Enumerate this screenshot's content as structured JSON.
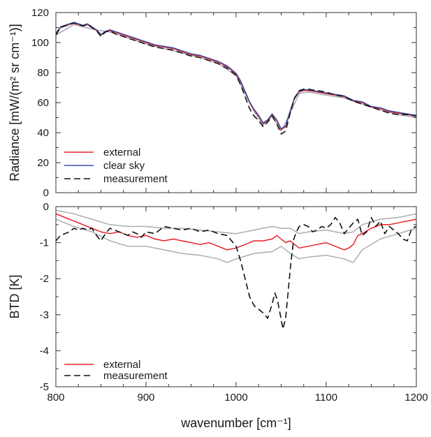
{
  "chart_data": [
    {
      "type": "line",
      "id": "radiance",
      "xlim": [
        800,
        1200
      ],
      "ylim": [
        0,
        120
      ],
      "xticks": [
        800,
        900,
        1000,
        1100,
        1200
      ],
      "yticks": [
        0,
        20,
        40,
        60,
        80,
        100,
        120
      ],
      "show_xtick_labels": false,
      "ylabel": "Radiance [mW/(m² sr cm⁻¹)]",
      "grid": false,
      "legend_position": "bottom-left",
      "series": [
        {
          "name": "external",
          "color": "#e8202a",
          "dash": "solid",
          "x": [
            800,
            805,
            810,
            815,
            820,
            825,
            830,
            835,
            840,
            845,
            850,
            855,
            860,
            865,
            870,
            875,
            880,
            885,
            890,
            895,
            900,
            910,
            920,
            930,
            940,
            950,
            960,
            970,
            980,
            990,
            1000,
            1005,
            1010,
            1015,
            1020,
            1025,
            1030,
            1035,
            1040,
            1045,
            1050,
            1055,
            1060,
            1065,
            1070,
            1075,
            1080,
            1090,
            1100,
            1110,
            1120,
            1130,
            1140,
            1150,
            1160,
            1170,
            1180,
            1190,
            1200
          ],
          "y": [
            106,
            110,
            111,
            112,
            113,
            112,
            111,
            112,
            110,
            108,
            105,
            107,
            108,
            107,
            106,
            105,
            104,
            103,
            102,
            101,
            100,
            98,
            97,
            96,
            94,
            92,
            91,
            89,
            87,
            84,
            79,
            74,
            67,
            60,
            55,
            51,
            46,
            48,
            52,
            48,
            42,
            44,
            54,
            63,
            67,
            68,
            68,
            67,
            66,
            65,
            64,
            61,
            60,
            57,
            56,
            54,
            53,
            52,
            51
          ]
        },
        {
          "name": "clear sky",
          "color": "#3b4fa3",
          "dash": "solid",
          "x": [
            800,
            805,
            810,
            815,
            820,
            825,
            830,
            835,
            840,
            845,
            850,
            855,
            860,
            865,
            870,
            875,
            880,
            885,
            890,
            895,
            900,
            910,
            920,
            930,
            940,
            950,
            960,
            970,
            980,
            990,
            1000,
            1005,
            1010,
            1015,
            1020,
            1025,
            1030,
            1035,
            1040,
            1045,
            1050,
            1055,
            1060,
            1065,
            1070,
            1075,
            1080,
            1090,
            1100,
            1110,
            1120,
            1130,
            1140,
            1150,
            1160,
            1170,
            1180,
            1190,
            1200
          ],
          "y": [
            106,
            110.5,
            111.5,
            112.5,
            113.5,
            112.5,
            111.5,
            112.5,
            110.5,
            108.5,
            105.5,
            107.5,
            108.5,
            107.5,
            106.5,
            105.5,
            104.5,
            103.5,
            102.5,
            101.5,
            100.5,
            98.5,
            97.5,
            96.5,
            94.5,
            92.5,
            91.5,
            89.5,
            87.5,
            84.5,
            79.5,
            74.5,
            67.5,
            60.5,
            55.5,
            51.5,
            46.5,
            48.5,
            52.5,
            48.5,
            42.5,
            44.5,
            54.5,
            63.5,
            67.5,
            68.5,
            68.5,
            67.5,
            66.5,
            65.5,
            64.5,
            61.5,
            60.5,
            57.5,
            56.5,
            54.5,
            53.5,
            52.5,
            51.5
          ]
        },
        {
          "name": "measurement",
          "color": "#111111",
          "dash": "dashed",
          "x": [
            800,
            805,
            810,
            815,
            820,
            825,
            830,
            835,
            840,
            845,
            850,
            855,
            860,
            865,
            870,
            875,
            880,
            885,
            890,
            895,
            900,
            910,
            920,
            930,
            940,
            950,
            960,
            970,
            980,
            990,
            1000,
            1005,
            1010,
            1015,
            1020,
            1025,
            1030,
            1035,
            1040,
            1045,
            1050,
            1055,
            1060,
            1065,
            1070,
            1075,
            1080,
            1090,
            1100,
            1110,
            1120,
            1130,
            1140,
            1150,
            1160,
            1170,
            1180,
            1190,
            1200
          ],
          "y": [
            105,
            110,
            111,
            112,
            113,
            112,
            111,
            112,
            110,
            108,
            104,
            107,
            108,
            106,
            105,
            104,
            103,
            102,
            101,
            100,
            99,
            97,
            96,
            95,
            93,
            91,
            90,
            88,
            86,
            83,
            78,
            72,
            64,
            56,
            51,
            48,
            44,
            47,
            51,
            46,
            39,
            41,
            53,
            63,
            68,
            69,
            69,
            68,
            67,
            65,
            64,
            61,
            59,
            57,
            55,
            53,
            52,
            52,
            51
          ]
        },
        {
          "name": "",
          "color": "#a9adb3",
          "dash": "solid",
          "x": [
            800,
            820,
            840,
            860,
            880,
            900,
            920,
            940,
            960,
            980,
            1000,
            1010,
            1020,
            1030,
            1040,
            1050,
            1060,
            1070,
            1080,
            1100,
            1120,
            1140,
            1160,
            1180,
            1200
          ],
          "y": [
            105,
            112,
            109,
            107,
            103,
            99,
            96,
            93,
            90,
            86,
            78,
            66,
            54,
            45,
            51,
            41,
            53,
            66,
            67,
            65,
            63,
            59,
            55,
            52,
            50
          ]
        }
      ]
    },
    {
      "type": "line",
      "id": "btd",
      "xlim": [
        800,
        1200
      ],
      "ylim": [
        -5,
        0
      ],
      "xticks": [
        800,
        900,
        1000,
        1100,
        1200
      ],
      "yticks": [
        0,
        -1,
        -2,
        -3,
        -4,
        -5
      ],
      "show_xtick_labels": true,
      "xlabel": "wavenumber [cm⁻¹]",
      "ylabel": "BTD [K]",
      "grid": false,
      "legend_position": "bottom-left",
      "series": [
        {
          "name": "external",
          "color": "#e8202a",
          "dash": "solid",
          "x": [
            800,
            810,
            820,
            830,
            840,
            850,
            860,
            870,
            880,
            890,
            900,
            910,
            920,
            930,
            940,
            950,
            960,
            970,
            980,
            990,
            1000,
            1010,
            1020,
            1030,
            1040,
            1045,
            1050,
            1055,
            1060,
            1065,
            1070,
            1080,
            1090,
            1100,
            1110,
            1120,
            1125,
            1130,
            1135,
            1140,
            1150,
            1160,
            1170,
            1180,
            1190,
            1200
          ],
          "y": [
            -0.2,
            -0.3,
            -0.4,
            -0.5,
            -0.6,
            -0.7,
            -0.75,
            -0.7,
            -0.8,
            -0.85,
            -0.8,
            -0.9,
            -0.95,
            -0.9,
            -0.95,
            -1.0,
            -1.05,
            -1.0,
            -1.1,
            -1.2,
            -1.15,
            -1.05,
            -0.95,
            -0.95,
            -0.9,
            -0.8,
            -0.9,
            -1.0,
            -0.95,
            -1.05,
            -1.15,
            -1.1,
            -1.05,
            -1.0,
            -1.1,
            -1.2,
            -1.15,
            -1.05,
            -0.8,
            -0.75,
            -0.6,
            -0.5,
            -0.5,
            -0.45,
            -0.4,
            -0.35
          ]
        },
        {
          "name": "measurement",
          "color": "#111111",
          "dash": "dashed",
          "x": [
            800,
            805,
            810,
            815,
            820,
            825,
            830,
            835,
            840,
            845,
            850,
            855,
            860,
            865,
            870,
            875,
            880,
            885,
            890,
            895,
            900,
            910,
            920,
            930,
            940,
            950,
            960,
            970,
            980,
            990,
            1000,
            1005,
            1010,
            1015,
            1020,
            1025,
            1030,
            1035,
            1040,
            1043,
            1046,
            1049,
            1052,
            1055,
            1058,
            1061,
            1064,
            1067,
            1070,
            1075,
            1080,
            1085,
            1090,
            1095,
            1100,
            1105,
            1110,
            1115,
            1120,
            1125,
            1130,
            1135,
            1140,
            1145,
            1150,
            1155,
            1160,
            1165,
            1170,
            1175,
            1180,
            1185,
            1190,
            1195,
            1200
          ],
          "y": [
            -0.95,
            -0.8,
            -0.75,
            -0.7,
            -0.6,
            -0.65,
            -0.6,
            -0.65,
            -0.6,
            -0.8,
            -0.95,
            -0.75,
            -0.6,
            -0.65,
            -0.7,
            -0.75,
            -0.8,
            -0.7,
            -0.75,
            -0.85,
            -0.7,
            -0.75,
            -0.55,
            -0.6,
            -0.65,
            -0.6,
            -0.7,
            -0.65,
            -0.75,
            -0.8,
            -1.1,
            -1.5,
            -2.0,
            -2.5,
            -2.75,
            -2.85,
            -2.95,
            -3.1,
            -2.7,
            -2.4,
            -2.6,
            -3.0,
            -3.4,
            -3.1,
            -2.3,
            -1.5,
            -0.9,
            -0.7,
            -0.55,
            -0.5,
            -0.55,
            -0.7,
            -0.65,
            -0.55,
            -0.6,
            -0.5,
            -0.3,
            -0.45,
            -0.75,
            -0.6,
            -0.45,
            -0.35,
            -0.8,
            -0.7,
            -0.3,
            -0.55,
            -0.4,
            -0.75,
            -0.55,
            -0.65,
            -0.75,
            -0.9,
            -0.95,
            -0.6,
            -0.55
          ]
        },
        {
          "name": "",
          "color": "#a9adb3",
          "dash": "solid",
          "x": [
            800,
            820,
            840,
            860,
            880,
            900,
            920,
            940,
            960,
            980,
            1000,
            1020,
            1040,
            1050,
            1060,
            1070,
            1080,
            1100,
            1120,
            1130,
            1140,
            1160,
            1180,
            1200
          ],
          "y": [
            -0.1,
            -0.2,
            -0.35,
            -0.5,
            -0.55,
            -0.55,
            -0.6,
            -0.6,
            -0.65,
            -0.7,
            -0.75,
            -0.65,
            -0.55,
            -0.6,
            -0.6,
            -0.75,
            -0.7,
            -0.65,
            -0.75,
            -0.7,
            -0.5,
            -0.35,
            -0.3,
            -0.2
          ]
        },
        {
          "name": "",
          "color": "#a9adb3",
          "dash": "solid",
          "x": [
            800,
            820,
            840,
            860,
            880,
            900,
            920,
            940,
            960,
            980,
            990,
            1000,
            1020,
            1040,
            1050,
            1060,
            1070,
            1080,
            1100,
            1120,
            1130,
            1140,
            1160,
            1180,
            1200
          ],
          "y": [
            -0.35,
            -0.55,
            -0.7,
            -0.95,
            -1.1,
            -1.1,
            -1.2,
            -1.3,
            -1.35,
            -1.45,
            -1.55,
            -1.45,
            -1.3,
            -1.25,
            -1.1,
            -1.3,
            -1.45,
            -1.4,
            -1.35,
            -1.45,
            -1.55,
            -1.2,
            -0.9,
            -0.75,
            -0.6
          ]
        }
      ]
    }
  ]
}
